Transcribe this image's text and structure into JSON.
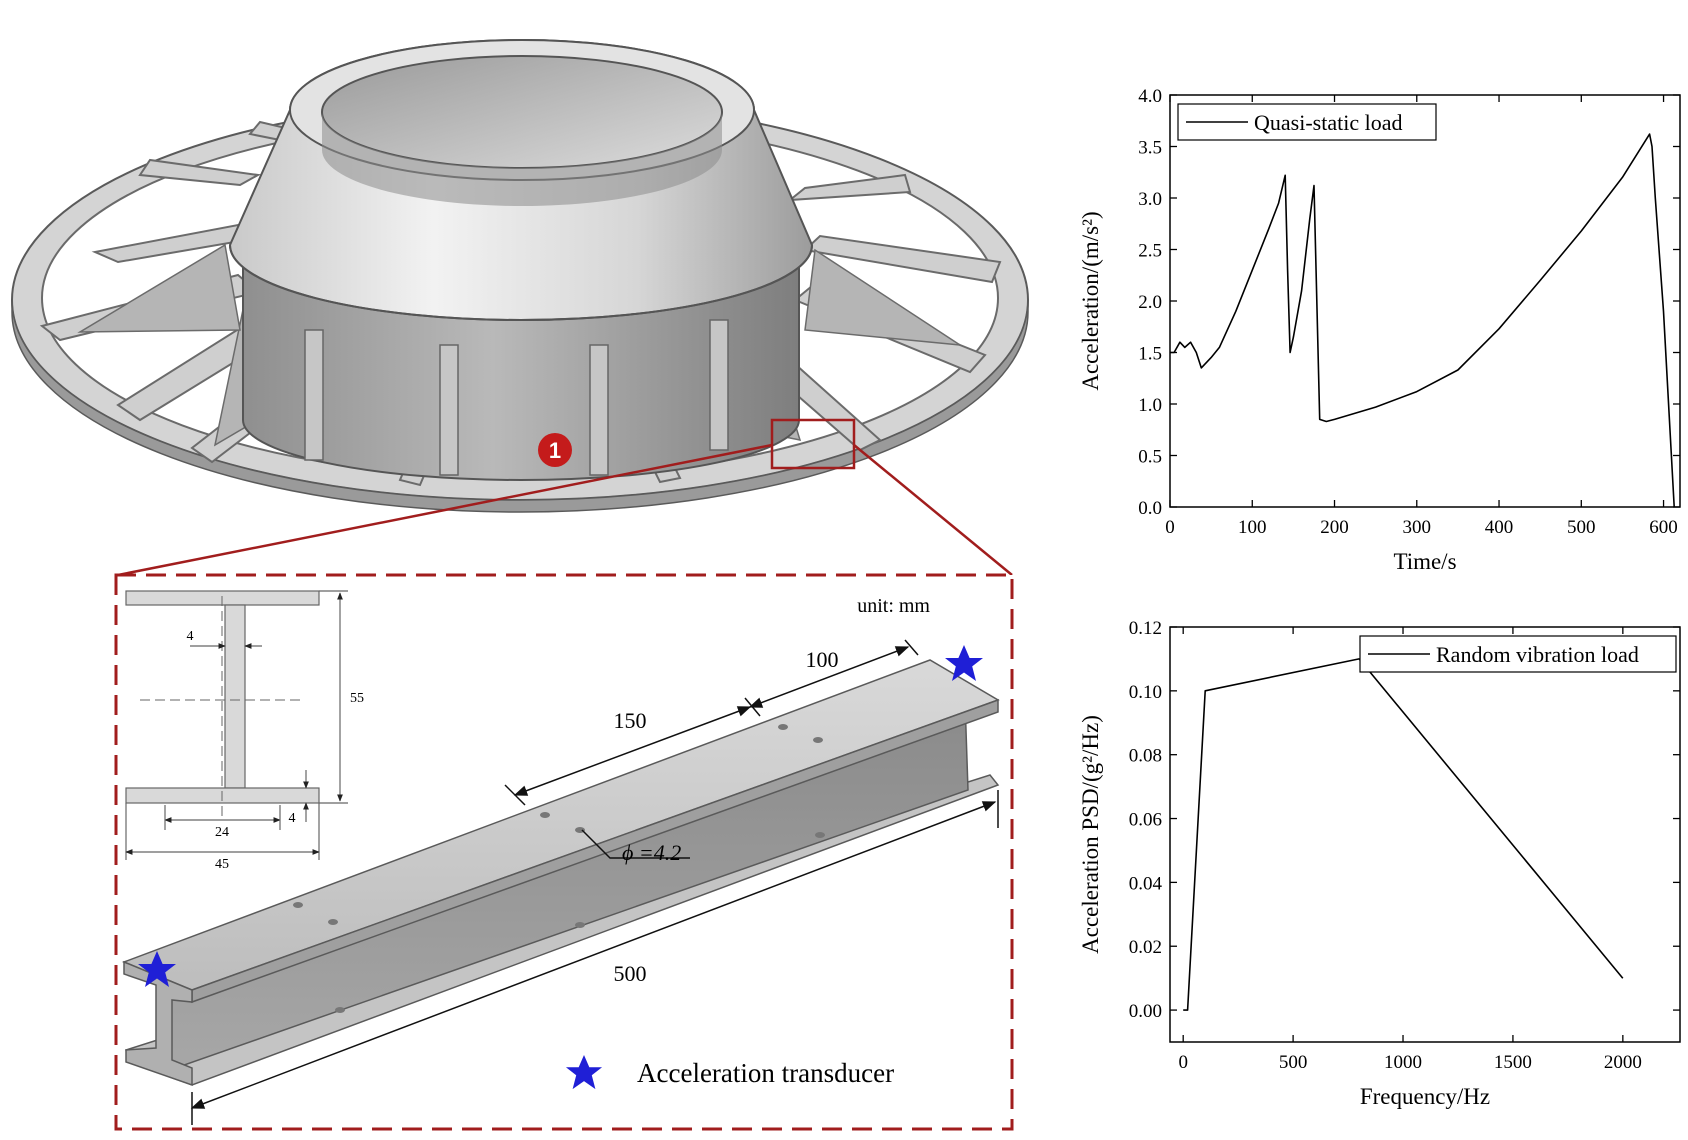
{
  "structure": {
    "callout_number": "1"
  },
  "beam_detail": {
    "unit_label": "unit:  mm",
    "dim_100": "100",
    "dim_150": "150",
    "dim_500": "500",
    "hole_label": "ϕ =4.2",
    "legend_label": "Acceleration transducer",
    "star_color": "#1f1fd6",
    "frame_color": "#a11d1d"
  },
  "cross_section": {
    "web_thickness": "4",
    "height": "55",
    "inner_width": "24",
    "flange_thickness": "4",
    "total_width": "45"
  },
  "chart_data": [
    {
      "type": "line",
      "xlabel": "Time/s",
      "ylabel": "Acceleration/(m/s²)",
      "xlim": [
        0,
        620
      ],
      "ylim": [
        0,
        4.0
      ],
      "xticks": [
        "0",
        "100",
        "200",
        "300",
        "400",
        "500",
        "600"
      ],
      "yticks": [
        "0.0",
        "0.5",
        "1.0",
        "1.5",
        "2.0",
        "2.5",
        "3.0",
        "3.5",
        "4.0"
      ],
      "legend_position": "top-left",
      "series": [
        {
          "name": "Quasi-static load",
          "x": [
            0,
            5,
            12,
            18,
            25,
            32,
            38,
            50,
            60,
            80,
            100,
            120,
            132,
            140,
            143,
            146,
            150,
            160,
            170,
            175,
            182,
            190,
            200,
            250,
            300,
            350,
            400,
            450,
            500,
            550,
            583,
            586,
            590,
            600,
            613
          ],
          "y": [
            1.5,
            1.5,
            1.6,
            1.55,
            1.6,
            1.5,
            1.35,
            1.45,
            1.55,
            1.9,
            2.3,
            2.7,
            2.95,
            3.22,
            2.3,
            1.5,
            1.65,
            2.1,
            2.8,
            3.12,
            0.85,
            0.83,
            0.85,
            0.97,
            1.12,
            1.33,
            1.73,
            2.2,
            2.68,
            3.2,
            3.62,
            3.5,
            3.0,
            1.9,
            0.0
          ]
        }
      ]
    },
    {
      "type": "line",
      "xlabel": "Frequency/Hz",
      "ylabel": "Acceleration PSD/(g²/Hz)",
      "xlim": [
        -60,
        2260
      ],
      "ylim": [
        -0.01,
        0.12
      ],
      "xticks": [
        "0",
        "500",
        "1000",
        "1500",
        "2000"
      ],
      "yticks": [
        "0.00",
        "0.02",
        "0.04",
        "0.06",
        "0.08",
        "0.10",
        "0.12"
      ],
      "legend_position": "top-right",
      "series": [
        {
          "name": "Random vibration load",
          "x": [
            0,
            20,
            100,
            800,
            2000
          ],
          "y": [
            0.0,
            0.0,
            0.1,
            0.11,
            0.01
          ]
        }
      ]
    }
  ]
}
